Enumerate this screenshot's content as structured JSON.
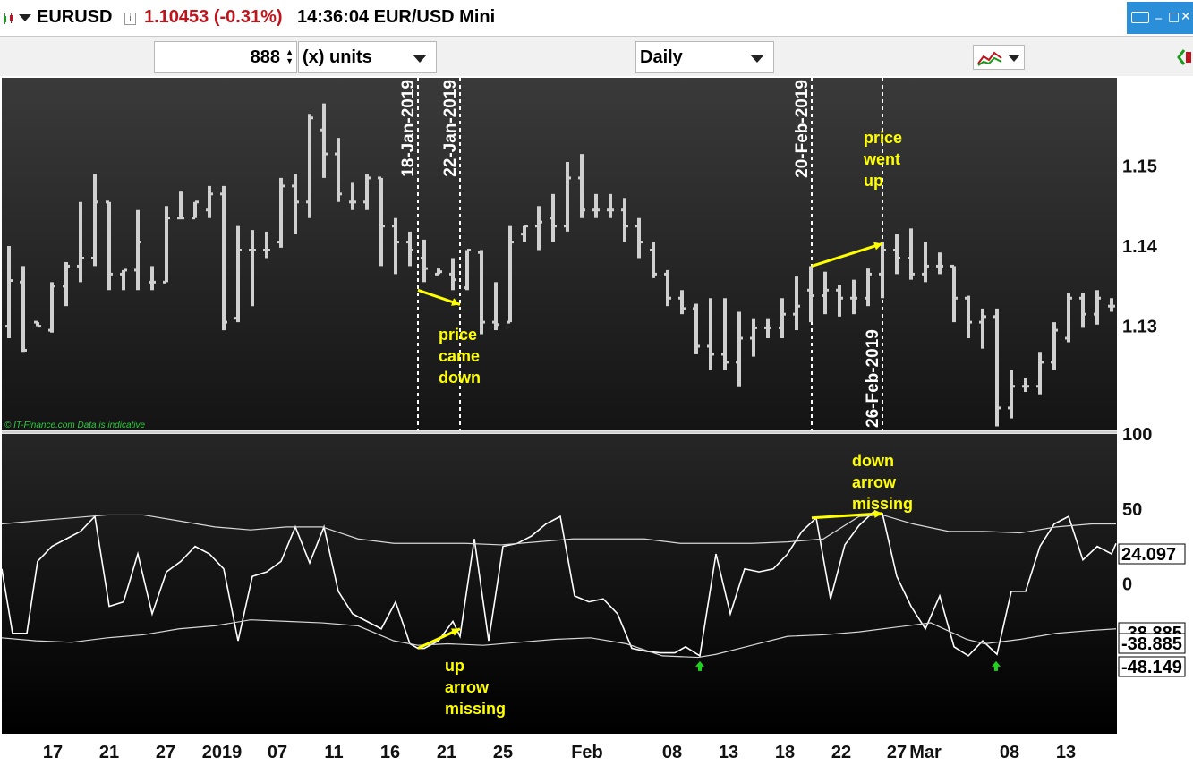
{
  "header": {
    "symbol": "EURUSD",
    "info_icon": "info-icon",
    "price": "1.10453 (-0.31%)",
    "time_desc": "14:36:04 EUR/USD Mini",
    "price_color": "#c0141c"
  },
  "toolbar": {
    "units_value": "888",
    "units_label": "(x) units",
    "period_value": "Daily",
    "indicator_icon": "indicator-chart-icon"
  },
  "chart_data": [
    {
      "type": "ohlc",
      "ylim": [
        1.117,
        1.161
      ],
      "yticks": [
        1.13,
        1.14,
        1.15
      ],
      "bar_color": "#d0d0d0",
      "background": "#1c1c1c",
      "watermark": "© IT-Finance.com  Data is indicative",
      "vlines": [
        {
          "label": "18-Jan-2019",
          "x": 467
        },
        {
          "label": "22-Jan-2019",
          "x": 514
        },
        {
          "label": "20-Feb-2019",
          "x": 907
        },
        {
          "label": "26-Feb-2019",
          "x": 986
        }
      ],
      "annotations": [
        {
          "lines": [
            "price",
            "came",
            "down"
          ],
          "x": 490,
          "y": 1.1284
        },
        {
          "lines": [
            "price",
            "went",
            "up"
          ],
          "x": 965,
          "y": 1.1523
        }
      ],
      "arrows": [
        {
          "from": [
            467,
            1.1345
          ],
          "to": [
            514,
            1.1327
          ]
        },
        {
          "from": [
            907,
            1.1375
          ],
          "to": [
            986,
            1.1403
          ]
        }
      ],
      "bars": [
        [
          10,
          1.13,
          1.14,
          1.1285,
          1.1357
        ],
        [
          26,
          1.1355,
          1.1375,
          1.1268,
          1.127
        ],
        [
          42,
          1.1305,
          1.1305,
          1.13,
          1.13
        ],
        [
          58,
          1.1295,
          1.1355,
          1.1292,
          1.135
        ],
        [
          74,
          1.135,
          1.138,
          1.1325,
          1.1375
        ],
        [
          90,
          1.1375,
          1.1455,
          1.1355,
          1.1385
        ],
        [
          106,
          1.1385,
          1.149,
          1.1375,
          1.1455
        ],
        [
          122,
          1.1455,
          1.1455,
          1.1345,
          1.1365
        ],
        [
          138,
          1.1365,
          1.137,
          1.1345,
          1.137
        ],
        [
          154,
          1.137,
          1.1445,
          1.1345,
          1.1405
        ],
        [
          170,
          1.1355,
          1.1375,
          1.1345,
          1.1355
        ],
        [
          186,
          1.1355,
          1.145,
          1.1355,
          1.1435
        ],
        [
          202,
          1.1435,
          1.1468,
          1.1435,
          1.1435
        ],
        [
          218,
          1.1435,
          1.1455,
          1.1435,
          1.1455
        ],
        [
          234,
          1.1445,
          1.1475,
          1.1435,
          1.1465
        ],
        [
          250,
          1.1465,
          1.1475,
          1.1295,
          1.1305
        ],
        [
          266,
          1.131,
          1.1425,
          1.1305,
          1.1395
        ],
        [
          282,
          1.1395,
          1.142,
          1.1325,
          1.1395
        ],
        [
          298,
          1.1395,
          1.1418,
          1.1385,
          1.1395
        ],
        [
          314,
          1.1405,
          1.1485,
          1.1398,
          1.1475
        ],
        [
          330,
          1.1475,
          1.149,
          1.1415,
          1.1455
        ],
        [
          346,
          1.1455,
          1.1565,
          1.1435,
          1.156
        ],
        [
          362,
          1.1545,
          1.1578,
          1.1485,
          1.1515
        ],
        [
          378,
          1.1515,
          1.1535,
          1.1455,
          1.1465
        ],
        [
          394,
          1.1455,
          1.148,
          1.1445,
          1.1455
        ],
        [
          410,
          1.1455,
          1.149,
          1.1445,
          1.1485
        ],
        [
          426,
          1.1485,
          1.1485,
          1.1375,
          1.1425
        ],
        [
          442,
          1.1425,
          1.1435,
          1.1365,
          1.1405
        ],
        [
          458,
          1.1405,
          1.1418,
          1.1375,
          1.1395
        ],
        [
          474,
          1.1385,
          1.1408,
          1.1355,
          1.1372
        ],
        [
          490,
          1.1365,
          1.1372,
          1.1365,
          1.1368
        ],
        [
          506,
          1.1365,
          1.1385,
          1.1345,
          1.1358
        ],
        [
          522,
          1.1348,
          1.1395,
          1.1345,
          1.1395
        ],
        [
          538,
          1.1392,
          1.1395,
          1.129,
          1.1305
        ],
        [
          554,
          1.1305,
          1.1355,
          1.1295,
          1.1302
        ],
        [
          570,
          1.1305,
          1.1425,
          1.1305,
          1.1405
        ],
        [
          586,
          1.1415,
          1.1425,
          1.1405,
          1.1425
        ],
        [
          602,
          1.1425,
          1.145,
          1.1395,
          1.143
        ],
        [
          618,
          1.1435,
          1.1465,
          1.1405,
          1.1425
        ],
        [
          634,
          1.1425,
          1.1505,
          1.1418,
          1.1485
        ],
        [
          650,
          1.1485,
          1.1515,
          1.1435,
          1.1445
        ],
        [
          666,
          1.1445,
          1.1465,
          1.1435,
          1.1445
        ],
        [
          682,
          1.1445,
          1.1465,
          1.1435,
          1.1445
        ],
        [
          698,
          1.1445,
          1.146,
          1.1405,
          1.1425
        ],
        [
          714,
          1.1425,
          1.1435,
          1.1385,
          1.1405
        ],
        [
          730,
          1.1395,
          1.1405,
          1.136,
          1.1365
        ],
        [
          746,
          1.1365,
          1.137,
          1.1325,
          1.1335
        ],
        [
          762,
          1.1335,
          1.1345,
          1.1315,
          1.1322
        ],
        [
          778,
          1.1322,
          1.1328,
          1.1265,
          1.1275
        ],
        [
          794,
          1.1275,
          1.1335,
          1.1245,
          1.1265
        ],
        [
          810,
          1.1265,
          1.1335,
          1.1245,
          1.1255
        ],
        [
          826,
          1.1255,
          1.1318,
          1.1225,
          1.1285
        ],
        [
          842,
          1.1285,
          1.131,
          1.1262,
          1.1298
        ],
        [
          858,
          1.1298,
          1.131,
          1.1285,
          1.1298
        ],
        [
          874,
          1.1298,
          1.1335,
          1.1285,
          1.1315
        ],
        [
          890,
          1.1315,
          1.1362,
          1.1295,
          1.1325
        ],
        [
          906,
          1.1345,
          1.1375,
          1.1305,
          1.1338
        ],
        [
          922,
          1.1338,
          1.1368,
          1.1315,
          1.1345
        ],
        [
          938,
          1.1345,
          1.1352,
          1.1312,
          1.1335
        ],
        [
          954,
          1.1335,
          1.1358,
          1.1315,
          1.1335
        ],
        [
          970,
          1.1335,
          1.1372,
          1.1325,
          1.1365
        ],
        [
          986,
          1.1365,
          1.1405,
          1.1335,
          1.1395
        ],
        [
          1002,
          1.1395,
          1.1415,
          1.1365,
          1.1385
        ],
        [
          1018,
          1.1385,
          1.1422,
          1.1358,
          1.1365
        ],
        [
          1034,
          1.1365,
          1.1405,
          1.1355,
          1.1375
        ],
        [
          1050,
          1.1375,
          1.1392,
          1.1365,
          1.1375
        ],
        [
          1066,
          1.1375,
          1.1375,
          1.1305,
          1.1335
        ],
        [
          1082,
          1.1335,
          1.1338,
          1.1285,
          1.1305
        ],
        [
          1098,
          1.1305,
          1.1322,
          1.1272,
          1.1312
        ],
        [
          1114,
          1.1312,
          1.1322,
          1.1175,
          1.1198
        ],
        [
          1130,
          1.1198,
          1.1245,
          1.1185,
          1.1225
        ],
        [
          1146,
          1.1225,
          1.1235,
          1.1218,
          1.1225
        ],
        [
          1162,
          1.1225,
          1.1268,
          1.1215,
          1.1255
        ],
        [
          1178,
          1.1255,
          1.1305,
          1.1245,
          1.1295
        ],
        [
          1194,
          1.1285,
          1.1342,
          1.128,
          1.1335
        ],
        [
          1210,
          1.1335,
          1.1342,
          1.1298,
          1.1315
        ],
        [
          1226,
          1.1315,
          1.1345,
          1.1302,
          1.1335
        ],
        [
          1242,
          1.1325,
          1.1335,
          1.1318,
          1.1325
        ]
      ],
      "ylabel": ""
    },
    {
      "type": "line",
      "ylim": [
        -100,
        100
      ],
      "yticks": [
        100,
        50,
        0
      ],
      "value_tags": [
        "24.097",
        "-38.885",
        "-38.885",
        "-48.149"
      ],
      "background": "#000000",
      "series": [
        {
          "color": "#ffffff",
          "x": [
            2,
            14,
            30,
            42,
            58,
            74,
            90,
            106,
            122,
            138,
            154,
            170,
            186,
            202,
            218,
            234,
            250,
            266,
            282,
            298,
            314,
            330,
            346,
            362,
            378,
            394,
            410,
            426,
            442,
            458,
            467,
            474,
            490,
            506,
            514,
            530,
            546,
            562,
            578,
            594,
            610,
            626,
            642,
            658,
            674,
            690,
            706,
            722,
            738,
            754,
            766,
            782,
            800,
            816,
            832,
            848,
            864,
            880,
            896,
            912,
            928,
            944,
            960,
            976,
            986,
            1002,
            1018,
            1034,
            1050,
            1066,
            1082,
            1098,
            1114,
            1130,
            1146,
            1162,
            1178,
            1194,
            1210,
            1226,
            1242,
            1247
          ],
          "y": [
            10,
            -33,
            -33,
            15,
            25,
            30,
            35,
            45,
            -15,
            -12,
            20,
            -20,
            8,
            15,
            25,
            20,
            10,
            -38,
            5,
            8,
            15,
            38,
            14,
            38,
            -5,
            -20,
            -25,
            -30,
            -12,
            -40,
            -43,
            -43,
            -38,
            -25,
            -35,
            30,
            -38,
            25,
            27,
            32,
            40,
            45,
            -8,
            -12,
            -10,
            -20,
            -43,
            -45,
            -46,
            -46,
            -42,
            -48,
            20,
            -20,
            10,
            8,
            10,
            20,
            35,
            44,
            -10,
            26,
            39,
            48,
            47,
            5,
            -15,
            -30,
            -8,
            -42,
            -48,
            -38,
            -47,
            -5,
            -5,
            25,
            40,
            45,
            16,
            25,
            20,
            27
          ]
        },
        {
          "color": "#d8d8d8",
          "x": [
            2,
            40,
            80,
            120,
            160,
            200,
            240,
            280,
            320,
            360,
            400,
            440,
            480,
            520,
            560,
            600,
            640,
            680,
            720,
            760,
            800,
            840,
            880,
            920,
            960,
            986,
            1020,
            1060,
            1100,
            1140,
            1180,
            1220,
            1247
          ],
          "y": [
            40,
            42,
            44,
            46,
            46,
            42,
            38,
            36,
            38,
            38,
            30,
            27,
            27,
            27,
            26,
            28,
            30,
            30,
            30,
            27,
            27,
            27,
            28,
            30,
            45,
            46,
            40,
            35,
            35,
            34,
            38,
            40,
            40
          ]
        },
        {
          "color": "#d8d8d8",
          "x": [
            2,
            40,
            80,
            120,
            160,
            200,
            240,
            280,
            320,
            360,
            400,
            440,
            467,
            500,
            540,
            580,
            620,
            660,
            700,
            740,
            780,
            800,
            840,
            880,
            920,
            960,
            1000,
            1040,
            1080,
            1100,
            1140,
            1180,
            1220,
            1247
          ],
          "y": [
            -36,
            -38,
            -39,
            -36,
            -34,
            -30,
            -28,
            -24,
            -25,
            -26,
            -28,
            -38,
            -41,
            -40,
            -41,
            -39,
            -37,
            -36,
            -40,
            -48,
            -49,
            -47,
            -41,
            -35,
            -34,
            -32,
            -29,
            -26,
            -37,
            -40,
            -37,
            -33,
            -31,
            -30
          ]
        }
      ],
      "markers": [
        {
          "type": "up-arrow",
          "x": 782,
          "y": -48,
          "color": "#1ed31e"
        },
        {
          "type": "up-arrow",
          "x": 1113,
          "y": -48,
          "color": "#1ed31e"
        }
      ],
      "annotations": [
        {
          "lines": [
            "down",
            "arrow",
            "missing"
          ],
          "x": 952
        },
        {
          "lines": [
            "up",
            "arrow",
            "missing"
          ],
          "x": 497
        }
      ],
      "arrows": [
        {
          "from": [
            907,
            44
          ],
          "to": [
            986,
            47
          ]
        },
        {
          "from": [
            467,
            -43
          ],
          "to": [
            514,
            -30
          ]
        }
      ],
      "ylabel": ""
    }
  ],
  "xaxis": {
    "ticks": [
      {
        "label": "17",
        "x": 59
      },
      {
        "label": "21",
        "x": 122
      },
      {
        "label": "27",
        "x": 185
      },
      {
        "label": "2019",
        "x": 248
      },
      {
        "label": "07",
        "x": 310
      },
      {
        "label": "11",
        "x": 373
      },
      {
        "label": "16",
        "x": 436
      },
      {
        "label": "21",
        "x": 499
      },
      {
        "label": "25",
        "x": 562
      },
      {
        "label": "Feb",
        "x": 656
      },
      {
        "label": "08",
        "x": 751
      },
      {
        "label": "13",
        "x": 814
      },
      {
        "label": "18",
        "x": 877
      },
      {
        "label": "22",
        "x": 940
      },
      {
        "label": "27",
        "x": 1002
      },
      {
        "label": "Mar",
        "x": 1034
      },
      {
        "label": "08",
        "x": 1128
      },
      {
        "label": "13",
        "x": 1191
      }
    ]
  }
}
